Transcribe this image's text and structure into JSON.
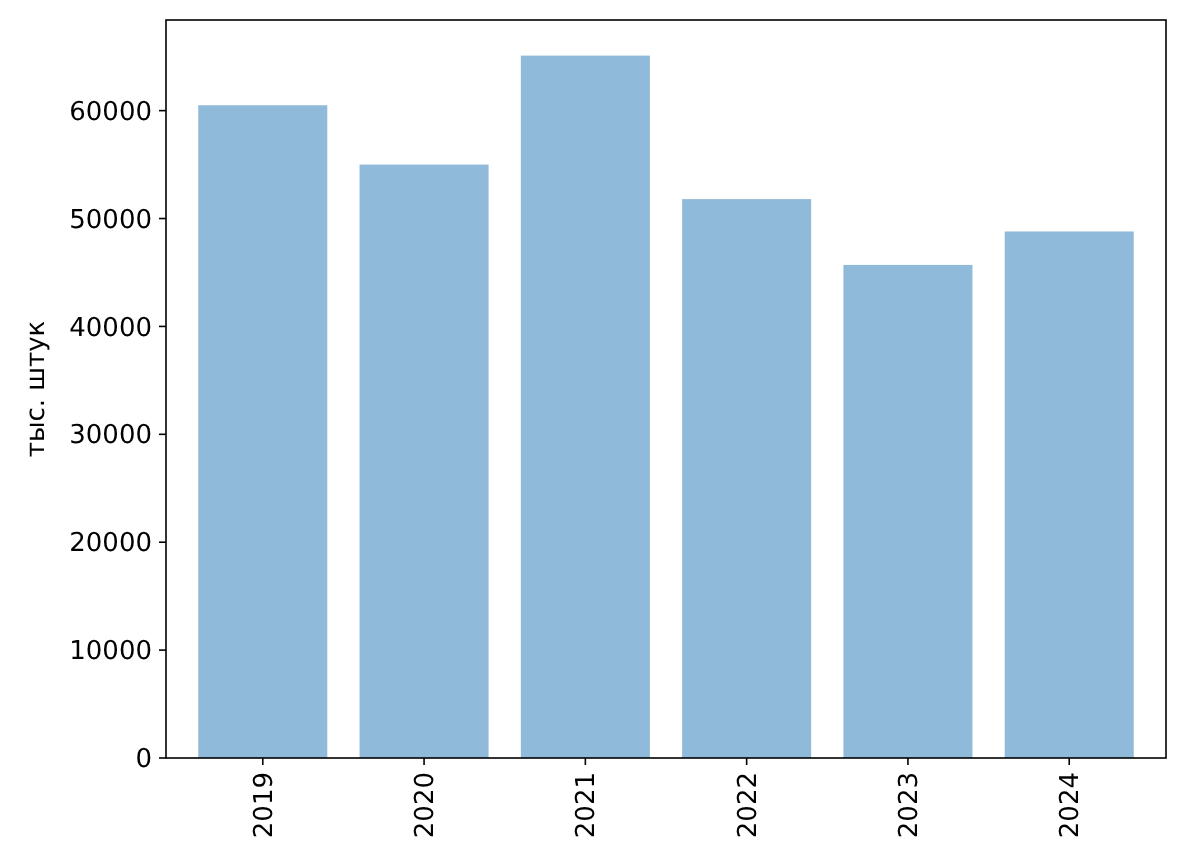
{
  "chart_data": {
    "type": "bar",
    "ylabel": "тыс. штук",
    "categories": [
      "2019",
      "2020",
      "2021",
      "2022",
      "2023",
      "2024"
    ],
    "values": [
      60500,
      55000,
      65100,
      51800,
      45700,
      48800
    ],
    "color": "#8fbad9",
    "ylim": [
      0,
      68400
    ],
    "yticks": [
      0,
      10000,
      20000,
      30000,
      40000,
      50000,
      60000
    ],
    "grid": false
  }
}
